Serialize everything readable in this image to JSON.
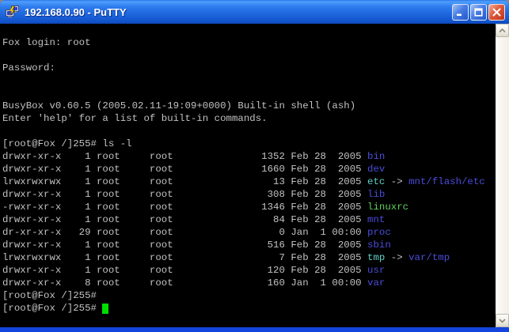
{
  "window": {
    "title": "192.168.0.90 - PuTTY",
    "icon": "putty-icon",
    "controls": [
      {
        "name": "minimize-button",
        "icon": "minimize-icon"
      },
      {
        "name": "maximize-button",
        "icon": "maximize-icon"
      },
      {
        "name": "close-button",
        "icon": "close-icon"
      }
    ],
    "border_color": "#1344dd"
  },
  "scrollbar": {
    "up_icon": "chevron-up-icon",
    "down_icon": "chevron-down-icon"
  },
  "terminal": {
    "palette": {
      "fg": "#c2c2c2",
      "dir": "#4c4cdb",
      "exec": "#5ecf5e",
      "link": "#5fcfc7",
      "cursor": "#00e000",
      "background": "#000000"
    },
    "lines": [
      {
        "segments": [
          {
            "t": "Fox login: root",
            "c": "fg"
          }
        ]
      },
      {
        "segments": []
      },
      {
        "segments": [
          {
            "t": "Password:",
            "c": "fg"
          }
        ]
      },
      {
        "segments": []
      },
      {
        "segments": []
      },
      {
        "segments": [
          {
            "t": "BusyBox v0.60.5 (2005.02.11-19:09+0000) Built-in shell (ash)",
            "c": "fg"
          }
        ]
      },
      {
        "segments": [
          {
            "t": "Enter 'help' for a list of built-in commands.",
            "c": "fg"
          }
        ]
      },
      {
        "segments": []
      },
      {
        "segments": [
          {
            "t": "[root@Fox /]255# ls -l",
            "c": "fg"
          }
        ]
      },
      {
        "segments": [
          {
            "t": "drwxr-xr-x    1 root     root               1352 Feb 28  2005 ",
            "c": "fg"
          },
          {
            "t": "bin",
            "c": "dir"
          }
        ]
      },
      {
        "segments": [
          {
            "t": "drwxr-xr-x    1 root     root               1660 Feb 28  2005 ",
            "c": "fg"
          },
          {
            "t": "dev",
            "c": "dir"
          }
        ]
      },
      {
        "segments": [
          {
            "t": "lrwxrwxrwx    1 root     root                 13 Feb 28  2005 ",
            "c": "fg"
          },
          {
            "t": "etc",
            "c": "link"
          },
          {
            "t": " -> ",
            "c": "fg"
          },
          {
            "t": "mnt/flash/etc",
            "c": "dir"
          }
        ]
      },
      {
        "segments": [
          {
            "t": "drwxr-xr-x    1 root     root                308 Feb 28  2005 ",
            "c": "fg"
          },
          {
            "t": "lib",
            "c": "dir"
          }
        ]
      },
      {
        "segments": [
          {
            "t": "-rwxr-xr-x    1 root     root               1346 Feb 28  2005 ",
            "c": "fg"
          },
          {
            "t": "linuxrc",
            "c": "exec"
          }
        ]
      },
      {
        "segments": [
          {
            "t": "drwxr-xr-x    1 root     root                 84 Feb 28  2005 ",
            "c": "fg"
          },
          {
            "t": "mnt",
            "c": "dir"
          }
        ]
      },
      {
        "segments": [
          {
            "t": "dr-xr-xr-x   29 root     root                  0 Jan  1 00:00 ",
            "c": "fg"
          },
          {
            "t": "proc",
            "c": "dir"
          }
        ]
      },
      {
        "segments": [
          {
            "t": "drwxr-xr-x    1 root     root                516 Feb 28  2005 ",
            "c": "fg"
          },
          {
            "t": "sbin",
            "c": "dir"
          }
        ]
      },
      {
        "segments": [
          {
            "t": "lrwxrwxrwx    1 root     root                  7 Feb 28  2005 ",
            "c": "fg"
          },
          {
            "t": "tmp",
            "c": "link"
          },
          {
            "t": " -> ",
            "c": "fg"
          },
          {
            "t": "var/tmp",
            "c": "dir"
          }
        ]
      },
      {
        "segments": [
          {
            "t": "drwxr-xr-x    1 root     root                120 Feb 28  2005 ",
            "c": "fg"
          },
          {
            "t": "usr",
            "c": "dir"
          }
        ]
      },
      {
        "segments": [
          {
            "t": "drwxr-xr-x    8 root     root                160 Jan  1 00:00 ",
            "c": "fg"
          },
          {
            "t": "var",
            "c": "dir"
          }
        ]
      },
      {
        "segments": [
          {
            "t": "[root@Fox /]255#",
            "c": "fg"
          }
        ]
      },
      {
        "segments": [
          {
            "t": "[root@Fox /]255# ",
            "c": "fg"
          }
        ],
        "cursor": true
      }
    ]
  }
}
